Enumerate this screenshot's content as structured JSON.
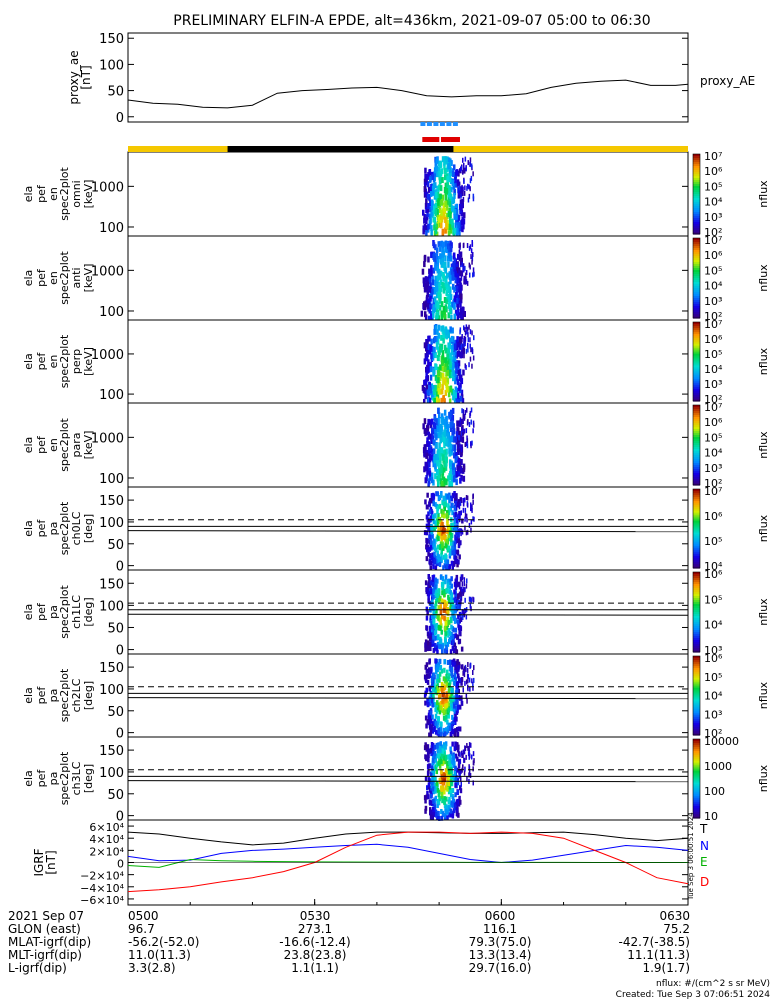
{
  "title": "PRELIMINARY ELFIN-A EPDE, alt=436km, 2021-09-07 05:00 to 06:30",
  "colors": {
    "bar_yellow": "#f5c800",
    "bar_black": "#000000",
    "marker_blue": "#1f8fff",
    "marker_red": "#e00000",
    "igrf_T": "#000000",
    "igrf_N": "#0000ff",
    "igrf_E": "#00b000",
    "igrf_D": "#ff0000",
    "dash_line": "#000000"
  },
  "chart_data": [
    {
      "type": "line",
      "id": "proxy_ae",
      "ylabel": [
        "proxy_ae",
        "[nT]"
      ],
      "legend": "proxy_AE",
      "ylim": [
        -10,
        160
      ],
      "yticks": [
        "0",
        "50",
        "100",
        "150"
      ],
      "ytick_values": [
        0,
        50,
        100,
        150
      ],
      "x": [
        0,
        4,
        8,
        12,
        16,
        20,
        24,
        28,
        32,
        36,
        40,
        44,
        48,
        52,
        56,
        60,
        64,
        68,
        72,
        76,
        80,
        84,
        88,
        90
      ],
      "values": [
        32,
        26,
        24,
        18,
        17,
        22,
        45,
        50,
        52,
        55,
        56,
        50,
        40,
        38,
        40,
        40,
        44,
        56,
        64,
        68,
        70,
        60,
        60,
        62
      ]
    },
    {
      "type": "heatmap",
      "id": "omni",
      "ylabel": [
        "ela",
        "pef",
        "en",
        "spec2plot",
        "omni",
        "[keV]"
      ],
      "yscale": "log",
      "ylim": [
        60,
        7000
      ],
      "yticks": [
        "100",
        "1000"
      ],
      "ytick_values": [
        100,
        1000
      ],
      "colorbar": {
        "label": "nflux",
        "ticks": [
          "10²",
          "10³",
          "10⁴",
          "10⁵",
          "10⁶",
          "10⁷"
        ],
        "range": [
          100,
          10000000
        ]
      }
    },
    {
      "type": "heatmap",
      "id": "anti",
      "ylabel": [
        "ela",
        "pef",
        "en",
        "spec2plot",
        "anti",
        "[keV]"
      ],
      "yscale": "log",
      "ylim": [
        60,
        7000
      ],
      "yticks": [
        "100",
        "1000"
      ],
      "ytick_values": [
        100,
        1000
      ],
      "colorbar": {
        "label": "nflux",
        "ticks": [
          "10²",
          "10³",
          "10⁴",
          "10⁵",
          "10⁶",
          "10⁷"
        ],
        "range": [
          100,
          10000000
        ]
      }
    },
    {
      "type": "heatmap",
      "id": "perp",
      "ylabel": [
        "ela",
        "pef",
        "en",
        "spec2plot",
        "perp",
        "[keV]"
      ],
      "yscale": "log",
      "ylim": [
        60,
        7000
      ],
      "yticks": [
        "100",
        "1000"
      ],
      "ytick_values": [
        100,
        1000
      ],
      "colorbar": {
        "label": "nflux",
        "ticks": [
          "10²",
          "10³",
          "10⁴",
          "10⁵",
          "10⁶",
          "10⁷"
        ],
        "range": [
          100,
          10000000
        ]
      }
    },
    {
      "type": "heatmap",
      "id": "para",
      "ylabel": [
        "ela",
        "pef",
        "en",
        "spec2plot",
        "para",
        "[keV]"
      ],
      "yscale": "log",
      "ylim": [
        60,
        7000
      ],
      "yticks": [
        "100",
        "1000"
      ],
      "ytick_values": [
        100,
        1000
      ],
      "colorbar": {
        "label": "nflux",
        "ticks": [
          "10²",
          "10³",
          "10⁴",
          "10⁵",
          "10⁶",
          "10⁷"
        ],
        "range": [
          100,
          10000000
        ]
      }
    },
    {
      "type": "heatmap",
      "id": "ch0LC",
      "ylabel": [
        "ela",
        "pef",
        "pa",
        "spec2plot",
        "ch0LC",
        "[deg]"
      ],
      "ylim": [
        -10,
        180
      ],
      "yticks": [
        "0",
        "50",
        "100",
        "150"
      ],
      "ytick_values": [
        0,
        50,
        100,
        150
      ],
      "solid_lines": [
        90,
        80
      ],
      "dashed_line": 105,
      "colorbar": {
        "label": "nflux",
        "ticks": [
          "10⁴",
          "10⁵",
          "10⁶",
          "10⁷"
        ],
        "range": [
          3000,
          10000000
        ]
      }
    },
    {
      "type": "heatmap",
      "id": "ch1LC",
      "ylabel": [
        "ela",
        "pef",
        "pa",
        "spec2plot",
        "ch1LC",
        "[deg]"
      ],
      "ylim": [
        -10,
        180
      ],
      "yticks": [
        "0",
        "50",
        "100",
        "150"
      ],
      "ytick_values": [
        0,
        50,
        100,
        150
      ],
      "solid_lines": [
        90,
        80
      ],
      "dashed_line": 105,
      "colorbar": {
        "label": "nflux",
        "ticks": [
          "10³",
          "10⁴",
          "10⁵",
          "10⁶"
        ],
        "range": [
          1000,
          3000000
        ]
      }
    },
    {
      "type": "heatmap",
      "id": "ch2LC",
      "ylabel": [
        "ela",
        "pef",
        "pa",
        "spec2plot",
        "ch2LC",
        "[deg]"
      ],
      "ylim": [
        -10,
        180
      ],
      "yticks": [
        "0",
        "50",
        "100",
        "150"
      ],
      "ytick_values": [
        0,
        50,
        100,
        150
      ],
      "solid_lines": [
        90,
        80
      ],
      "dashed_line": 105,
      "colorbar": {
        "label": "nflux",
        "ticks": [
          "10²",
          "10³",
          "10⁴",
          "10⁵",
          "10⁶"
        ],
        "range": [
          100,
          3000000
        ]
      }
    },
    {
      "type": "heatmap",
      "id": "ch3LC",
      "ylabel": [
        "ela",
        "pef",
        "pa",
        "spec2plot",
        "ch3LC",
        "[deg]"
      ],
      "ylim": [
        -10,
        180
      ],
      "yticks": [
        "0",
        "50",
        "100",
        "150"
      ],
      "ytick_values": [
        0,
        50,
        100,
        150
      ],
      "solid_lines": [
        90,
        80
      ],
      "dashed_line": 105,
      "colorbar": {
        "label": "nflux",
        "ticks": [
          "10",
          "100",
          "1000",
          "10000"
        ],
        "range": [
          10,
          30000
        ]
      }
    },
    {
      "type": "line",
      "id": "igrf",
      "ylabel": [
        "IGRF",
        "[nT]"
      ],
      "ylim": [
        -70000,
        70000
      ],
      "yticks": [
        "6×10⁴",
        "4×10⁴",
        "2×10⁴",
        "0",
        "−2×10⁴",
        "−4×10⁴",
        "−6×10⁴"
      ],
      "ytick_values": [
        60000,
        40000,
        20000,
        0,
        -20000,
        -40000,
        -60000
      ],
      "annotation": "Tue Sep  3 06:00:51 2024",
      "x": [
        0,
        5,
        10,
        15,
        20,
        25,
        30,
        35,
        40,
        45,
        50,
        55,
        60,
        65,
        70,
        75,
        80,
        85,
        90
      ],
      "series": [
        {
          "name": "T",
          "values": [
            50000,
            47000,
            40000,
            34000,
            29000,
            32000,
            40000,
            47000,
            50000,
            50000,
            49000,
            48000,
            48000,
            49000,
            50000,
            46000,
            40000,
            36000,
            40000
          ]
        },
        {
          "name": "N",
          "values": [
            10000,
            3000,
            4000,
            15000,
            20000,
            22000,
            25000,
            28000,
            30000,
            25000,
            15000,
            5000,
            0,
            4000,
            12000,
            20000,
            28000,
            25000,
            20000
          ]
        },
        {
          "name": "E",
          "values": [
            -5000,
            -8000,
            5000,
            3000,
            2000,
            1500,
            1000,
            800,
            600,
            400,
            300,
            200,
            150,
            120,
            100,
            80,
            60,
            40,
            20
          ]
        },
        {
          "name": "D",
          "values": [
            -48000,
            -45000,
            -40000,
            -32000,
            -25000,
            -15000,
            0,
            25000,
            45000,
            50000,
            50000,
            48000,
            50000,
            48000,
            40000,
            20000,
            0,
            -25000,
            -35000
          ]
        }
      ]
    }
  ],
  "xaxis": {
    "ticks": [
      "0500",
      "0530",
      "0600",
      "0630"
    ],
    "tick_minutes": [
      0,
      30,
      60,
      90
    ],
    "range": [
      0,
      90
    ]
  },
  "orbit_table": {
    "rows": [
      {
        "label": "2021 Sep 07",
        "values": [
          "0500",
          "0530",
          "0600",
          "0630"
        ]
      },
      {
        "label": "GLON (east)",
        "values": [
          "96.7",
          "273.1",
          "116.1",
          "75.2"
        ]
      },
      {
        "label": "MLAT-igrf(dip)",
        "values": [
          "-56.2(-52.0)",
          "-16.6(-12.4)",
          "79.3(75.0)",
          "-42.7(-38.5)"
        ]
      },
      {
        "label": "MLT-igrf(dip)",
        "values": [
          "11.0(11.3)",
          "23.8(23.8)",
          "13.3(13.4)",
          "11.1(11.3)"
        ]
      },
      {
        "label": "L-igrf(dip)",
        "values": [
          "3.3(2.8)",
          "1.1(1.1)",
          "29.7(16.0)",
          "1.9(1.7)"
        ]
      }
    ]
  },
  "footer": {
    "units": "nflux: #/(cm^2 s sr MeV)",
    "created": "Created: Tue Sep  3 07:06:51 2024"
  }
}
